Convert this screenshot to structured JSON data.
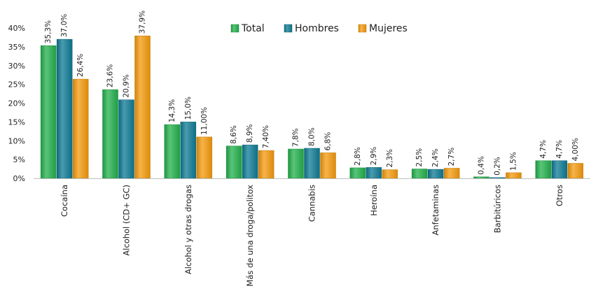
{
  "chart_data": {
    "type": "bar",
    "title": "",
    "xlabel": "",
    "ylabel": "",
    "ylim": [
      0,
      40
    ],
    "yticks": [
      "0%",
      "5%",
      "10%",
      "15%",
      "20%",
      "25%",
      "30%",
      "35%",
      "40%"
    ],
    "grid": false,
    "legend_position": "top",
    "categories": [
      "Cocaína",
      "Alcohol (CD+ GC)",
      "Alcohol y otras drogas",
      "Más de una droga/politox",
      "Cannabis",
      "Heroína",
      "Anfetaminas",
      "Barbitúricos",
      "Otros"
    ],
    "series": [
      {
        "name": "Total",
        "color": "#22b04b",
        "values": [
          35.3,
          23.6,
          14.3,
          8.6,
          7.8,
          2.8,
          2.5,
          0.4,
          4.7
        ],
        "labels": [
          "35,3%",
          "23,6%",
          "14,3%",
          "8,6%",
          "7,8%",
          "2,8%",
          "2,5%",
          "0,4%",
          "4,7%"
        ]
      },
      {
        "name": "Hombres",
        "color": "#0e7a94",
        "values": [
          37.0,
          20.9,
          15.0,
          8.9,
          8.0,
          2.9,
          2.4,
          0.2,
          4.7
        ],
        "labels": [
          "37,0%",
          "20,9%",
          "15,0%",
          "8,9%",
          "8,0%",
          "2,9%",
          "2,4%",
          "0,2%",
          "4,7%"
        ]
      },
      {
        "name": "Mujeres",
        "color": "#f49a0c",
        "values": [
          26.4,
          37.9,
          11.0,
          7.4,
          6.8,
          2.3,
          2.7,
          1.5,
          4.0
        ],
        "labels": [
          "26,4%",
          "37,9%",
          "11,00%",
          "7,40%",
          "6,8%",
          "2,3%",
          "2,7%",
          "1,5%",
          "4,00%"
        ]
      }
    ]
  }
}
